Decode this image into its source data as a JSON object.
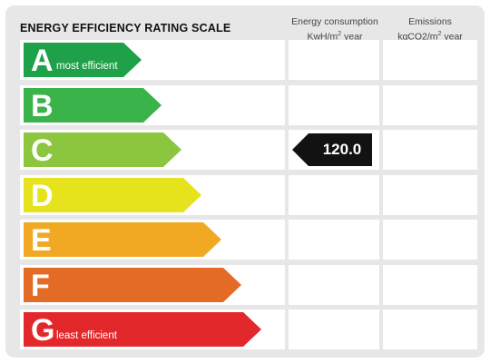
{
  "title": "ENERGY EFFICIENCY RATING SCALE",
  "columns": {
    "energy": {
      "line1": "Energy consumption",
      "line2_prefix": "KwH/m",
      "line2_sup": "2",
      "line2_suffix": " year"
    },
    "emissions": {
      "line1": "Emissions",
      "line2_prefix": "kgCO2/m",
      "line2_sup": "2",
      "line2_suffix": " year"
    }
  },
  "ratings": [
    {
      "letter": "A",
      "desc": "most efficient",
      "color": "#1fa149"
    },
    {
      "letter": "B",
      "desc": "",
      "color": "#39b34a"
    },
    {
      "letter": "C",
      "desc": "",
      "color": "#8cc63f"
    },
    {
      "letter": "D",
      "desc": "",
      "color": "#e6e31d"
    },
    {
      "letter": "E",
      "desc": "",
      "color": "#f1a923"
    },
    {
      "letter": "F",
      "desc": "",
      "color": "#e36b25"
    },
    {
      "letter": "G",
      "desc": "least efficient",
      "color": "#e2282b"
    }
  ],
  "energy_reading": {
    "rating": "C",
    "value": "120.0",
    "color": "#121212"
  }
}
